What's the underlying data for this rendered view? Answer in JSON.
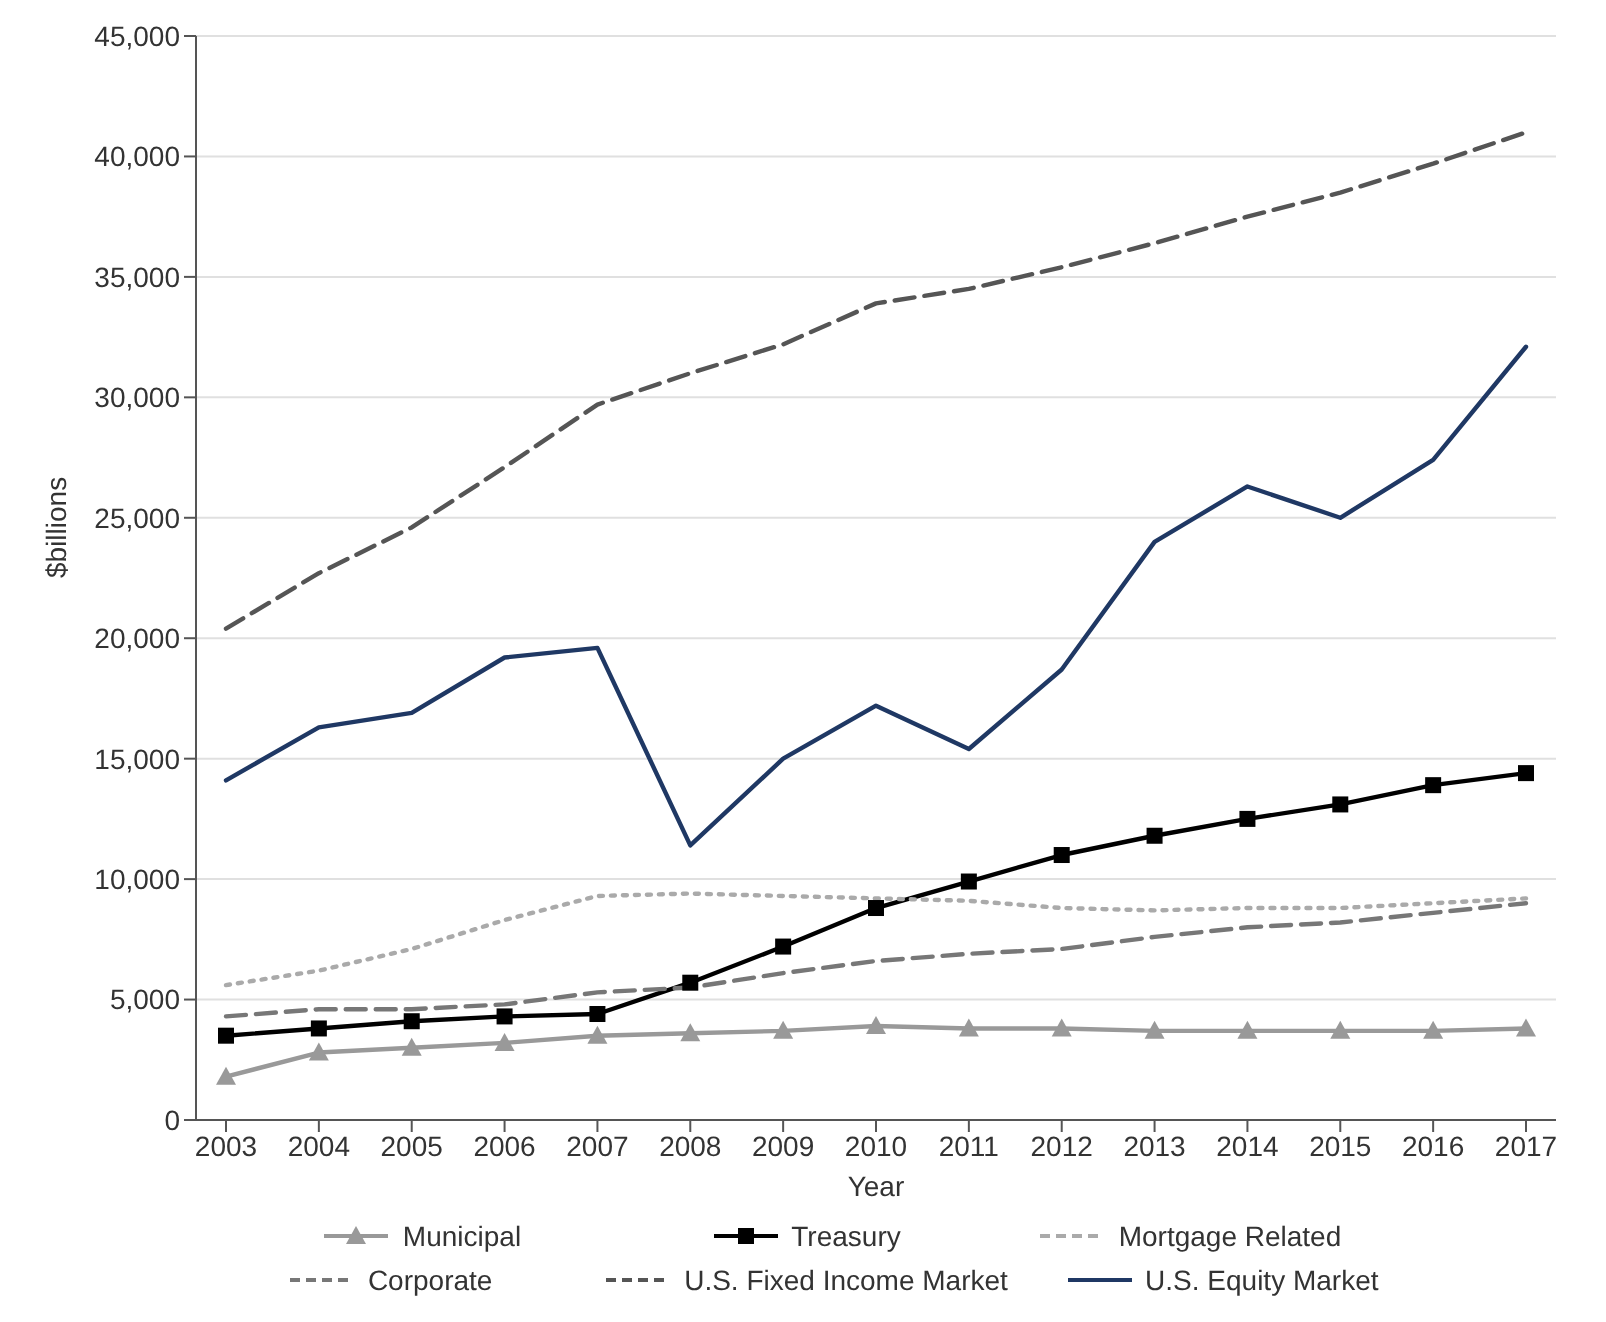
{
  "chart_data": {
    "type": "line",
    "xlabel": "Year",
    "ylabel": "$billions",
    "categories": [
      "2003",
      "2004",
      "2005",
      "2006",
      "2007",
      "2008",
      "2009",
      "2010",
      "2011",
      "2012",
      "2013",
      "2014",
      "2015",
      "2016",
      "2017"
    ],
    "series": [
      {
        "name": "Municipal",
        "color": "#999999",
        "marker": "triangle",
        "line_style": "solid",
        "values": [
          1800,
          2800,
          3000,
          3200,
          3500,
          3600,
          3700,
          3900,
          3800,
          3800,
          3700,
          3700,
          3700,
          3700,
          3800
        ]
      },
      {
        "name": "Treasury",
        "color": "#000000",
        "marker": "square",
        "line_style": "solid",
        "values": [
          3500,
          3800,
          4100,
          4300,
          4400,
          5700,
          7200,
          8800,
          9900,
          11000,
          11800,
          12500,
          13100,
          13900,
          14400
        ]
      },
      {
        "name": "Mortgage Related",
        "color": "#aaaaaa",
        "marker": "none",
        "line_style": "dotted",
        "values": [
          5600,
          6200,
          7100,
          8300,
          9300,
          9400,
          9300,
          9200,
          9100,
          8800,
          8700,
          8800,
          8800,
          9000,
          9200
        ]
      },
      {
        "name": "Corporate",
        "color": "#777777",
        "marker": "none",
        "line_style": "dashed",
        "values": [
          4300,
          4600,
          4600,
          4800,
          5300,
          5500,
          6100,
          6600,
          6900,
          7100,
          7600,
          8000,
          8200,
          8600,
          9000
        ]
      },
      {
        "name": "U.S. Fixed Income Market",
        "color": "#555555",
        "marker": "none",
        "line_style": "dashed",
        "values": [
          20400,
          22700,
          24600,
          27100,
          29700,
          31000,
          32200,
          33900,
          34500,
          35400,
          36400,
          37500,
          38500,
          39700,
          41000
        ]
      },
      {
        "name": "U.S. Equity Market",
        "color": "#1f3864",
        "marker": "none",
        "line_style": "solid",
        "values": [
          14100,
          16300,
          16900,
          19200,
          19600,
          11400,
          15000,
          17200,
          15400,
          18700,
          24000,
          26300,
          25000,
          27400,
          32100
        ]
      }
    ],
    "ylim": [
      0,
      45000
    ],
    "yticks": [
      0,
      {
        "value": 5000,
        "label": "5,000"
      },
      {
        "value": 10000,
        "label": "10,000"
      },
      {
        "value": 15000,
        "label": "15,000"
      },
      {
        "value": 20000,
        "label": "20,000"
      },
      {
        "value": 25000,
        "label": "25,000"
      },
      {
        "value": 30000,
        "label": "30,000"
      },
      {
        "value": 35000,
        "label": "35,000"
      },
      {
        "value": 40000,
        "label": "40,000"
      },
      {
        "value": 45000,
        "label": "45,000"
      }
    ],
    "grid": "y",
    "legend": "bottom"
  }
}
